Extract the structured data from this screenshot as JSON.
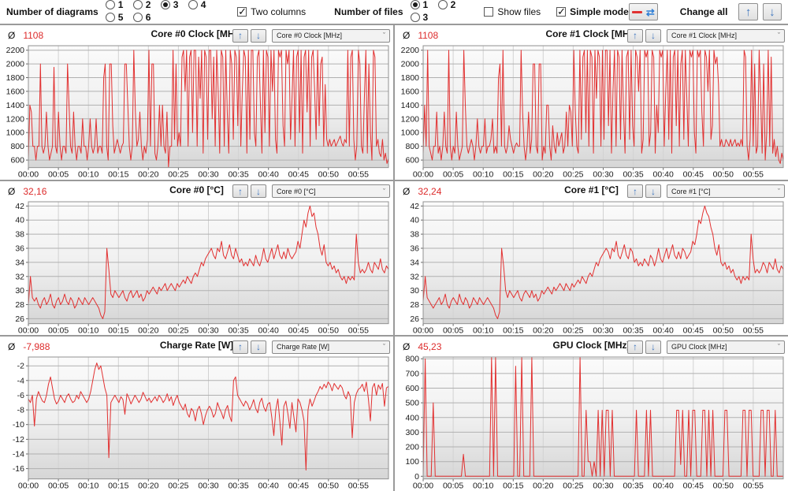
{
  "avg_symbol": "Ø",
  "toolbar": {
    "diagrams_label": "Number of diagrams",
    "diagram_options": [
      "1",
      "2",
      "3",
      "4",
      "5",
      "6"
    ],
    "diagrams_selected": "3",
    "two_columns_label": "Two columns",
    "two_columns_checked": true,
    "files_label": "Number of files",
    "file_options": [
      "1",
      "2",
      "3"
    ],
    "files_selected": "1",
    "show_files_label": "Show files",
    "show_files_checked": false,
    "simple_mode_label": "Simple mode",
    "simple_mode_checked": true,
    "change_all_label": "Change all",
    "sync_icon": "⇄",
    "up_arrow": "↑",
    "down_arrow": "↓"
  },
  "style": {
    "line_color": "#e23030",
    "avg_color": "#dd2b2b",
    "grid_h": "#b0b0b0",
    "grid_v": "#d2d2d2",
    "plot_border": "#909090",
    "icon_blue": "#3f76bf",
    "icon_red": "#e03232",
    "bg_top": "#fbfbfb",
    "bg_mid": "#f0f0f0",
    "bg_bottom": "#d6d6d6"
  },
  "x_axis": {
    "ticks": [
      "00:00",
      "00:05",
      "00:10",
      "00:15",
      "00:20",
      "00:25",
      "00:30",
      "00:35",
      "00:40",
      "00:45",
      "00:50",
      "00:55"
    ],
    "minutes": [
      0,
      5,
      10,
      15,
      20,
      25,
      30,
      35,
      40,
      45,
      50,
      55
    ],
    "range": [
      0,
      60
    ]
  },
  "chart_data": [
    {
      "type": "line",
      "title": "Core #0 Clock [MHz]",
      "avg": "1108",
      "dropdown_value": "Core #0 Clock [MHz]",
      "y_ticks": [
        600,
        800,
        1000,
        1200,
        1400,
        1600,
        1800,
        2000,
        2200
      ],
      "ylim": [
        490,
        2265
      ],
      "values": [
        620,
        1400,
        1300,
        800,
        800,
        600,
        800,
        800,
        2000,
        800,
        700,
        800,
        1300,
        800,
        600,
        700,
        800,
        1950,
        800,
        700,
        1300,
        800,
        600,
        800,
        800,
        700,
        2000,
        1400,
        800,
        700,
        1300,
        800,
        600,
        800,
        800,
        700,
        1200,
        800,
        800,
        600,
        800,
        1200,
        800,
        700,
        800,
        1200,
        700,
        800,
        800,
        700,
        1800,
        2000,
        800,
        600,
        2000,
        2000,
        1100,
        700,
        800,
        900,
        800,
        700,
        800,
        850,
        2000,
        2000,
        1400,
        800,
        600,
        800,
        2200,
        1300,
        800,
        900,
        1300,
        800,
        600,
        800,
        700,
        900,
        2200,
        800,
        2000,
        2000,
        700,
        600,
        800,
        1400,
        800,
        1400,
        800,
        700,
        1300,
        500,
        800,
        800,
        2200,
        900,
        2000,
        800,
        1000,
        800,
        2100,
        2200,
        1600,
        2200,
        800,
        2100,
        2200,
        1000,
        2200,
        2200,
        800,
        2100,
        1500,
        2200,
        700,
        2200,
        2100,
        900,
        2200,
        2200,
        1200,
        2100,
        800,
        2200,
        1600,
        700,
        2200,
        2100,
        800,
        2200,
        1300,
        700,
        2200,
        2000,
        900,
        2200,
        2100,
        1100,
        2200,
        800,
        1600,
        2200,
        2100,
        700,
        2200,
        900,
        2200,
        2200,
        1000,
        800,
        2100,
        2200,
        1400,
        700,
        2200,
        1000,
        2200,
        2100,
        800,
        2200,
        1600,
        2200,
        900,
        700,
        2200,
        2100,
        2200,
        1100,
        800,
        2200,
        2000,
        2200,
        900,
        1500,
        2200,
        800,
        2100,
        2200,
        1000,
        2200,
        700,
        2100,
        2200,
        1300,
        2200,
        800,
        2100,
        2200,
        1600,
        900,
        2200,
        1100,
        2000,
        2100,
        800,
        1700,
        900,
        800,
        900,
        800,
        850,
        900,
        800,
        850,
        900,
        950,
        850,
        800,
        900,
        850,
        2200,
        800,
        2100,
        2200,
        900,
        600,
        800,
        2200,
        2000,
        800,
        700,
        1500,
        2200,
        700,
        2000,
        1000,
        600,
        2200,
        2100,
        800,
        900,
        700,
        650,
        900,
        600,
        700,
        550,
        620
      ]
    },
    {
      "type": "line",
      "title": "Core #1 Clock [MHz]",
      "avg": "1108",
      "dropdown_value": "Core #1 Clock [MHz]",
      "y_ticks": [
        600,
        800,
        1000,
        1200,
        1400,
        1600,
        1800,
        2000,
        2200
      ],
      "ylim": [
        490,
        2265
      ],
      "values": [
        700,
        1400,
        800,
        2200,
        800,
        700,
        600,
        800,
        800,
        1300,
        700,
        800,
        600,
        800,
        1300,
        800,
        700,
        2200,
        800,
        600,
        800,
        700,
        1300,
        800,
        600,
        700,
        800,
        2200,
        1400,
        800,
        700,
        800,
        900,
        800,
        600,
        800,
        1200,
        800,
        700,
        800,
        800,
        1200,
        700,
        800,
        800,
        900,
        1200,
        700,
        800,
        700,
        1800,
        2000,
        800,
        2200,
        800,
        700,
        800,
        1100,
        900,
        800,
        700,
        800,
        850,
        800,
        800,
        2200,
        1300,
        800,
        600,
        800,
        1300,
        700,
        900,
        2000,
        2000,
        800,
        700,
        2000,
        2000,
        600,
        800,
        700,
        1400,
        1400,
        800,
        600,
        1100,
        800,
        700,
        1000,
        800,
        900,
        1000,
        700,
        800,
        1300,
        800,
        1400,
        1300,
        800,
        2200,
        1300,
        800,
        700,
        2200,
        900,
        2100,
        2200,
        1000,
        2200,
        800,
        2200,
        2100,
        700,
        2200,
        1500,
        2200,
        2100,
        800,
        2200,
        900,
        2200,
        2200,
        1100,
        2200,
        700,
        1600,
        2200,
        800,
        2200,
        2100,
        900,
        2200,
        1300,
        700,
        2100,
        2200,
        900,
        2200,
        1100,
        800,
        2200,
        2100,
        1600,
        2200,
        700,
        900,
        2200,
        2100,
        2200,
        800,
        1000,
        2200,
        2100,
        700,
        1400,
        1000,
        2200,
        2100,
        2200,
        800,
        1600,
        2200,
        900,
        2200,
        700,
        2100,
        2200,
        1100,
        2200,
        800,
        2000,
        2200,
        900,
        2200,
        1500,
        800,
        2200,
        2100,
        2200,
        1000,
        700,
        2200,
        2100,
        2200,
        1300,
        800,
        2200,
        2100,
        1600,
        2200,
        900,
        1100,
        2200,
        2000,
        2100,
        1700,
        800,
        900,
        800,
        800,
        900,
        850,
        800,
        900,
        800,
        850,
        900,
        800,
        850,
        800,
        900,
        800,
        2200,
        2100,
        800,
        600,
        900,
        2200,
        800,
        2000,
        700,
        800,
        2200,
        1500,
        700,
        2000,
        600,
        1000,
        2200,
        800,
        2100,
        700,
        900,
        650,
        800,
        600,
        550,
        700,
        600
      ]
    },
    {
      "type": "line",
      "title": "Core #0 [°C]",
      "avg": "32,16",
      "dropdown_value": "Core #0 [°C]",
      "y_ticks": [
        26,
        28,
        30,
        32,
        34,
        36,
        38,
        40,
        42
      ],
      "ylim": [
        25.3,
        42.6
      ],
      "values": [
        28,
        32,
        29,
        28.5,
        29,
        28,
        27.5,
        28.5,
        29,
        28,
        28.5,
        29.5,
        28,
        27.5,
        28.5,
        29,
        28,
        28.5,
        29.5,
        28.5,
        28,
        29,
        28.5,
        27.5,
        28,
        29,
        28.5,
        28,
        29,
        28.5,
        28,
        28.5,
        29,
        28.5,
        28,
        27.5,
        26.5,
        26,
        27,
        36,
        33,
        29.5,
        29,
        30,
        29.5,
        29,
        29.5,
        30,
        29,
        28.5,
        29.5,
        30,
        29,
        29.5,
        30,
        29,
        29.5,
        28.5,
        29,
        30,
        29.5,
        30,
        30.5,
        30,
        29.5,
        30.5,
        30,
        30.5,
        31,
        30,
        30.5,
        31,
        30.5,
        30,
        31,
        30.5,
        31,
        31.5,
        31,
        32,
        31.5,
        31,
        32,
        32.5,
        32,
        33,
        34,
        33.5,
        34.5,
        35,
        35.5,
        36,
        35,
        34.5,
        36,
        35.5,
        37,
        35,
        34.5,
        35.5,
        36.5,
        35,
        34.5,
        36,
        35,
        34,
        34.5,
        33.5,
        34,
        33.5,
        34.5,
        34,
        33.5,
        35,
        34,
        33.5,
        34.5,
        36,
        34.5,
        34,
        35,
        36,
        34.5,
        35.5,
        36.5,
        35,
        34.5,
        35.5,
        34.5,
        36,
        35,
        34.5,
        35,
        35.5,
        37,
        36,
        38,
        40,
        39,
        41,
        42,
        40.5,
        41,
        39,
        38,
        36,
        35,
        36.5,
        34,
        33.5,
        34,
        33,
        33.5,
        32.5,
        33,
        32,
        31.5,
        32,
        31,
        32,
        31.5,
        32,
        31.5,
        38,
        34,
        32.5,
        33,
        32.5,
        33,
        34,
        33,
        32.5,
        34,
        33.5,
        33,
        34.5,
        33,
        32.5,
        33.5,
        33
      ]
    },
    {
      "type": "line",
      "title": "Core #1 [°C]",
      "avg": "32,24",
      "dropdown_value": "Core #1 [°C]",
      "y_ticks": [
        26,
        28,
        30,
        32,
        34,
        36,
        38,
        40,
        42
      ],
      "ylim": [
        25.3,
        42.6
      ],
      "values": [
        28.5,
        32,
        29,
        28.5,
        28,
        27.5,
        28,
        28.5,
        29,
        28,
        28.5,
        29.5,
        28,
        27.5,
        28.5,
        29,
        28.5,
        28,
        29.5,
        28.5,
        28,
        29,
        28.5,
        27.5,
        28,
        29,
        28.5,
        28,
        29,
        28.5,
        28,
        28.5,
        29,
        28.5,
        28,
        27.5,
        26.5,
        26,
        27,
        36,
        33.5,
        30,
        29,
        30,
        29.5,
        29,
        29.5,
        30,
        29,
        28.5,
        29.5,
        30,
        29.5,
        29,
        30,
        29,
        29.5,
        28.5,
        29,
        30,
        29.5,
        30,
        30.5,
        30,
        29.5,
        30.5,
        30,
        30.5,
        31,
        30.5,
        30,
        31,
        30.5,
        30,
        31,
        30.5,
        31,
        31.5,
        31,
        32,
        31.5,
        31,
        32,
        32.5,
        32,
        33,
        34,
        33.5,
        34.5,
        35,
        35.5,
        36,
        35.5,
        34.5,
        36,
        35.5,
        37,
        35,
        34.5,
        35.5,
        36.5,
        35,
        34.5,
        36,
        35.5,
        34,
        34.5,
        33.5,
        34,
        33.5,
        34.5,
        34,
        33.5,
        35,
        34.5,
        33.5,
        34.5,
        36,
        34.5,
        34,
        35,
        36,
        34.5,
        35.5,
        36.5,
        35,
        34.5,
        35.5,
        34.5,
        36,
        35.5,
        34.5,
        35,
        35.5,
        37,
        36.5,
        38,
        40,
        39.5,
        41,
        42,
        41,
        40.5,
        39,
        38,
        36,
        35,
        36.5,
        34,
        33.5,
        34,
        33,
        33.5,
        32.5,
        33,
        32,
        31.5,
        32,
        31,
        32,
        31.5,
        32,
        31.5,
        38,
        34.5,
        32.5,
        33,
        32.5,
        33,
        34,
        33.5,
        32.5,
        34,
        33.5,
        33,
        34.5,
        33,
        32.5,
        33.5,
        33
      ]
    },
    {
      "type": "line",
      "title": "Charge Rate [W]",
      "avg": "-7,988",
      "dropdown_value": "Charge Rate [W]",
      "y_ticks": [
        -16,
        -14,
        -12,
        -10,
        -8,
        -6,
        -4,
        -2
      ],
      "ylim": [
        -17.4,
        -0.8
      ],
      "values": [
        -6.5,
        -7,
        -6,
        -10.2,
        -6.5,
        -5.5,
        -6.2,
        -6.8,
        -7,
        -6,
        -4.5,
        -3.5,
        -5,
        -6.5,
        -7.2,
        -6.8,
        -6,
        -6.5,
        -7,
        -6.2,
        -5.8,
        -6.5,
        -7,
        -6.8,
        -6,
        -6.5,
        -5.5,
        -6,
        -6.5,
        -7,
        -6.5,
        -5.5,
        -4,
        -2.5,
        -1.6,
        -2.5,
        -2,
        -3.5,
        -5,
        -6,
        -14.5,
        -7,
        -6.5,
        -6,
        -6.5,
        -7,
        -6.2,
        -6.6,
        -8.6,
        -5.8,
        -6.4,
        -7.2,
        -6.6,
        -6,
        -6.5,
        -7,
        -6.5,
        -5.6,
        -6.2,
        -6.8,
        -6.4,
        -7,
        -6.6,
        -6.2,
        -6.8,
        -6,
        -6.4,
        -7,
        -6.6,
        -5.8,
        -6.8,
        -6.2,
        -7.4,
        -6.6,
        -6,
        -7,
        -7.5,
        -8,
        -7.2,
        -8.5,
        -9,
        -7.8,
        -8.2,
        -9.5,
        -8,
        -7.5,
        -8.5,
        -10,
        -8.8,
        -8,
        -7.5,
        -8,
        -9,
        -8.5,
        -7,
        -7.8,
        -8.4,
        -9.2,
        -8,
        -7.4,
        -8.8,
        -9.6,
        -4,
        -3.5,
        -6,
        -6.5,
        -7,
        -7.5,
        -6.8,
        -7.2,
        -8,
        -7.4,
        -6.6,
        -7.8,
        -8.4,
        -7,
        -6.4,
        -7.6,
        -8.2,
        -7.2,
        -7,
        -9,
        -11.5,
        -8,
        -6.5,
        -9.5,
        -12.8,
        -7.5,
        -6.8,
        -8.5,
        -10.5,
        -7,
        -9,
        -11,
        -6.5,
        -7,
        -8,
        -9.5,
        -16.2,
        -8,
        -6.5,
        -7.5,
        -6.8,
        -6,
        -5.5,
        -4.8,
        -5.2,
        -4.5,
        -5,
        -4.2,
        -4.6,
        -5.4,
        -4.4,
        -4.8,
        -5.2,
        -4.6,
        -5,
        -6,
        -6.5,
        -5.5,
        -6.2,
        -11.8,
        -7,
        -5.8,
        -5.2,
        -5,
        -4.5,
        -5.5,
        -4.2,
        -6.5,
        -9.5,
        -5,
        -4.4,
        -6,
        -4.6,
        -5.2,
        -4.4,
        -7.5,
        -5,
        -4.8
      ]
    },
    {
      "type": "line",
      "title": "GPU Clock [MHz]",
      "avg": "45,23",
      "dropdown_value": "GPU Clock [MHz]",
      "y_ticks": [
        0,
        100,
        200,
        300,
        400,
        500,
        600,
        700,
        800
      ],
      "ylim": [
        -18,
        812
      ],
      "values": [
        0,
        800,
        0,
        0,
        0,
        500,
        0,
        0,
        0,
        0,
        0,
        0,
        0,
        0,
        0,
        0,
        0,
        0,
        0,
        0,
        150,
        0,
        0,
        0,
        0,
        0,
        0,
        0,
        0,
        0,
        0,
        0,
        0,
        0,
        810,
        0,
        810,
        0,
        0,
        0,
        0,
        0,
        0,
        0,
        0,
        0,
        750,
        0,
        0,
        810,
        0,
        0,
        0,
        0,
        810,
        0,
        0,
        0,
        0,
        0,
        0,
        0,
        0,
        0,
        0,
        0,
        0,
        0,
        0,
        0,
        0,
        0,
        0,
        0,
        0,
        0,
        0,
        0,
        810,
        0,
        0,
        450,
        100,
        100,
        0,
        100,
        0,
        450,
        0,
        450,
        0,
        450,
        450,
        0,
        450,
        0,
        0,
        0,
        0,
        0,
        0,
        0,
        0,
        0,
        0,
        0,
        450,
        0,
        0,
        0,
        0,
        450,
        0,
        450,
        0,
        0,
        0,
        0,
        0,
        0,
        0,
        0,
        0,
        0,
        0,
        0,
        450,
        450,
        80,
        450,
        0,
        0,
        450,
        0,
        450,
        450,
        0,
        0,
        0,
        450,
        450,
        0,
        450,
        0,
        450,
        0,
        0,
        0,
        0,
        0,
        450,
        450,
        0,
        0,
        0,
        0,
        0,
        0,
        0,
        450,
        450,
        0,
        450,
        450,
        0,
        0,
        0,
        0,
        450,
        450,
        0,
        450,
        450,
        0,
        0,
        450,
        0,
        0,
        0,
        0
      ]
    }
  ]
}
